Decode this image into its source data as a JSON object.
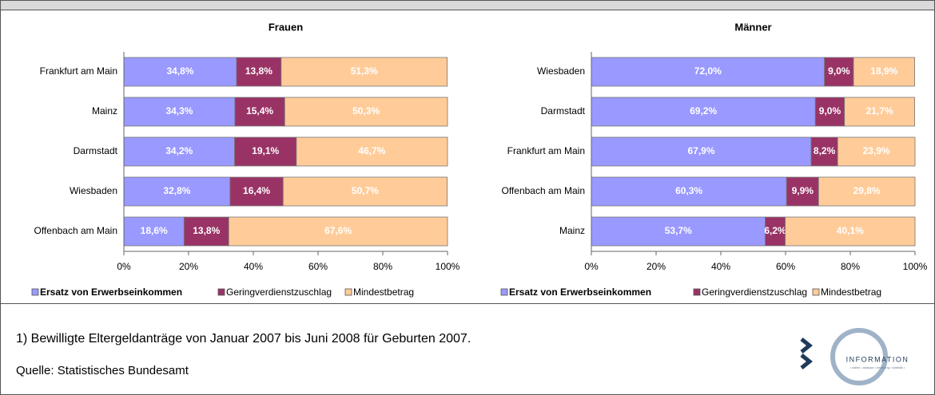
{
  "chart_data": [
    {
      "type": "stacked-bar-horizontal",
      "title": "Frauen",
      "categories": [
        "Frankfurt am Main",
        "Mainz",
        "Darmstadt",
        "Wiesbaden",
        "Offenbach am Main"
      ],
      "series": [
        {
          "name": "Ersatz von Erwerbseinkommen",
          "color": "#9999ff",
          "values": [
            34.8,
            34.3,
            34.2,
            32.8,
            18.6
          ],
          "value_labels": [
            "34,8%",
            "34,3%",
            "34,2%",
            "32,8%",
            "18,6%"
          ]
        },
        {
          "name": "Geringverdienstzuschlag",
          "color": "#993366",
          "values": [
            13.8,
            15.4,
            19.1,
            16.4,
            13.8
          ],
          "value_labels": [
            "13,8%",
            "15,4%",
            "19,1%",
            "16,4%",
            "13,8%"
          ]
        },
        {
          "name": "Mindestbetrag",
          "color": "#ffcc99",
          "values": [
            51.3,
            50.3,
            46.7,
            50.7,
            67.6
          ],
          "value_labels": [
            "51,3%",
            "50,3%",
            "46,7%",
            "50,7%",
            "67,6%"
          ]
        }
      ],
      "xlim": [
        0,
        100
      ],
      "xticks": [
        {
          "value": 0,
          "label": "0%"
        },
        {
          "value": 20,
          "label": "20%"
        },
        {
          "value": 40,
          "label": "40%"
        },
        {
          "value": 60,
          "label": "60%"
        },
        {
          "value": 80,
          "label": "80%"
        },
        {
          "value": 100,
          "label": "100%"
        }
      ],
      "grid": false,
      "legend": "bottom"
    },
    {
      "type": "stacked-bar-horizontal",
      "title": "Männer",
      "categories": [
        "Wiesbaden",
        "Darmstadt",
        "Frankfurt am Main",
        "Offenbach am Main",
        "Mainz"
      ],
      "series": [
        {
          "name": "Ersatz von Erwerbseinkommen",
          "color": "#9999ff",
          "values": [
            72.0,
            69.2,
            67.9,
            60.3,
            53.7
          ],
          "value_labels": [
            "72,0%",
            "69,2%",
            "67,9%",
            "60,3%",
            "53,7%"
          ]
        },
        {
          "name": "Geringverdienstzuschlag",
          "color": "#993366",
          "values": [
            9.0,
            9.0,
            8.2,
            9.9,
            6.2
          ],
          "value_labels": [
            "9,0%",
            "9,0%",
            "8,2%",
            "9,9%",
            "6,2%"
          ]
        },
        {
          "name": "Mindestbetrag",
          "color": "#ffcc99",
          "values": [
            18.9,
            21.7,
            23.9,
            29.8,
            40.1
          ],
          "value_labels": [
            "18,9%",
            "21,7%",
            "23,9%",
            "29,8%",
            "40,1%"
          ]
        }
      ],
      "xlim": [
        0,
        100
      ],
      "xticks": [
        {
          "value": 0,
          "label": "0%"
        },
        {
          "value": 20,
          "label": "20%"
        },
        {
          "value": 40,
          "label": "40%"
        },
        {
          "value": 60,
          "label": "60%"
        },
        {
          "value": 80,
          "label": "80%"
        },
        {
          "value": 100,
          "label": "100%"
        }
      ],
      "grid": false,
      "legend": "bottom"
    }
  ],
  "footnote": "1) Bewilligte Eltergeldanträge von Januar 2007 bis Juni 2008 für Geburten 2007.",
  "source": "Quelle:  Statistisches Bundesamt",
  "logo": {
    "name": "INFORMATION",
    "tagline": "• daten • analyse • beratung • statistik •"
  }
}
